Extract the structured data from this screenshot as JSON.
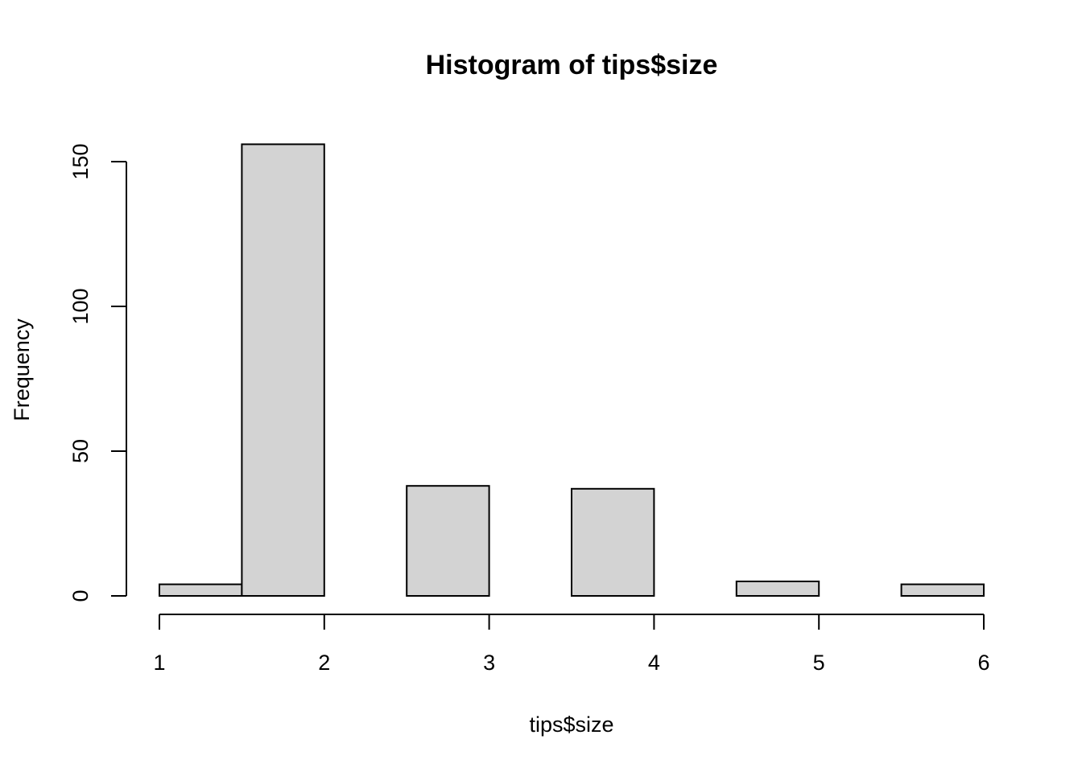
{
  "chart_data": {
    "type": "bar",
    "title": "Histogram of tips$size",
    "xlabel": "tips$size",
    "ylabel": "Frequency",
    "xlim": [
      1,
      6
    ],
    "ylim": [
      0,
      150
    ],
    "x_ticks": [
      "1",
      "2",
      "3",
      "4",
      "5",
      "6"
    ],
    "y_ticks": [
      "0",
      "50",
      "100",
      "150"
    ],
    "bins": [
      {
        "start": 1.0,
        "end": 1.5,
        "count": 4
      },
      {
        "start": 1.5,
        "end": 2.0,
        "count": 156
      },
      {
        "start": 2.0,
        "end": 2.5,
        "count": 0
      },
      {
        "start": 2.5,
        "end": 3.0,
        "count": 38
      },
      {
        "start": 3.0,
        "end": 3.5,
        "count": 0
      },
      {
        "start": 3.5,
        "end": 4.0,
        "count": 37
      },
      {
        "start": 4.0,
        "end": 4.5,
        "count": 0
      },
      {
        "start": 4.5,
        "end": 5.0,
        "count": 5
      },
      {
        "start": 5.0,
        "end": 5.5,
        "count": 0
      },
      {
        "start": 5.5,
        "end": 6.0,
        "count": 4
      }
    ],
    "bar_fill": "#d3d3d3",
    "bar_stroke": "#000000",
    "grid": false
  }
}
